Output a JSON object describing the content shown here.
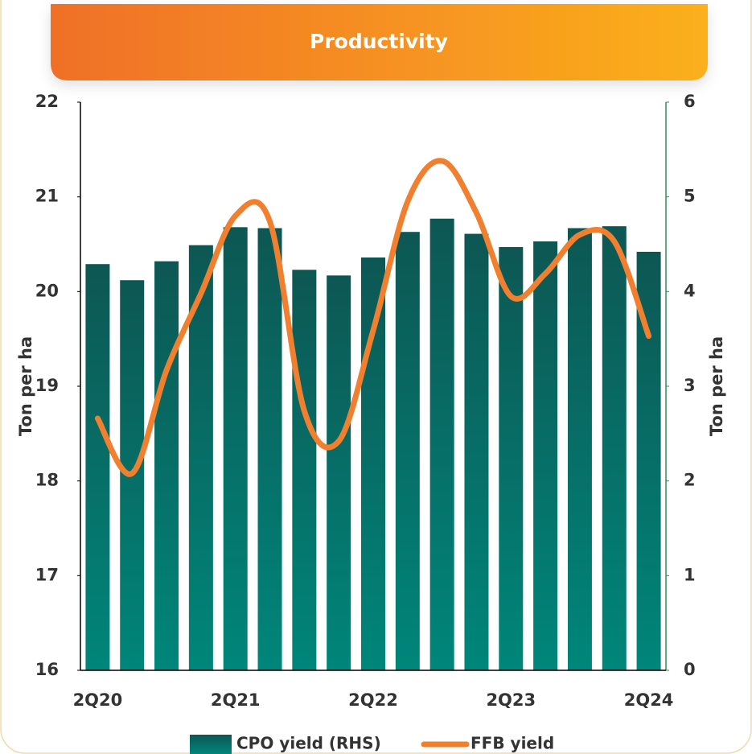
{
  "chart_data": {
    "type": "bar_line",
    "title": "Productivity",
    "categories": [
      "2Q20",
      null,
      null,
      null,
      "2Q21",
      null,
      null,
      null,
      "2Q22",
      null,
      null,
      null,
      "2Q23",
      null,
      null,
      null,
      "2Q24"
    ],
    "series": [
      {
        "name": "CPO yield (RHS)",
        "type": "bar",
        "axis": "y2",
        "color": "#0a6b63",
        "values": [
          4.29,
          4.12,
          4.32,
          4.49,
          4.68,
          4.67,
          4.23,
          4.17,
          4.36,
          4.63,
          4.77,
          4.61,
          4.47,
          4.53,
          4.67,
          4.69,
          4.42
        ]
      },
      {
        "name": "FFB yield",
        "type": "line",
        "axis": "y",
        "color": "#f08030",
        "values": [
          18.66,
          18.08,
          19.17,
          19.98,
          20.8,
          20.74,
          18.74,
          18.42,
          19.59,
          20.95,
          21.38,
          20.83,
          19.95,
          20.19,
          20.6,
          20.53,
          19.53
        ]
      }
    ],
    "ylabel": "Ton per ha",
    "y2label": "Ton per ha",
    "ylim": [
      16,
      22
    ],
    "yticks": [
      16,
      17,
      18,
      19,
      20,
      21,
      22
    ],
    "y2lim": [
      0,
      6
    ],
    "y2ticks": [
      0,
      1,
      2,
      3,
      4,
      5,
      6
    ]
  }
}
